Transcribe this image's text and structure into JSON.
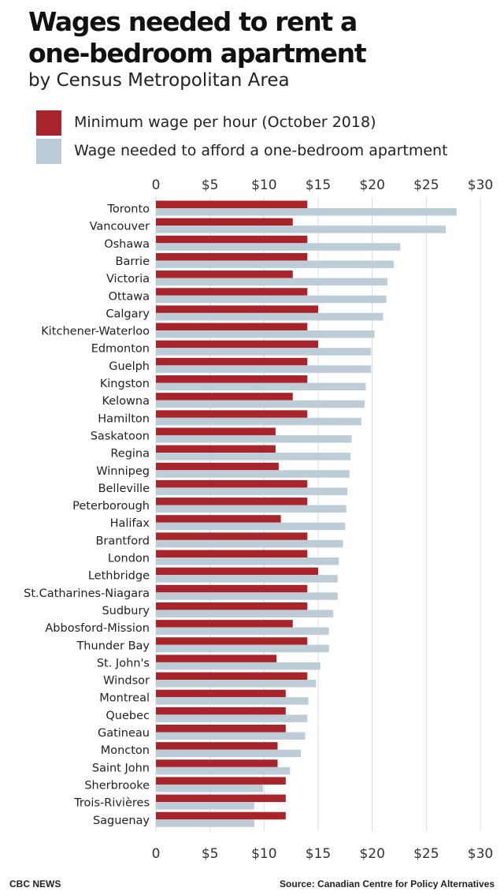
{
  "header": {
    "title_line1": "Wages needed to rent a",
    "title_line2": "one-bedroom apartment",
    "subtitle": "by Census Metropolitan Area"
  },
  "footer": {
    "credit": "CBC NEWS",
    "source": "Source: Canadian Centre for Policy Alternatives"
  },
  "chart_data": {
    "type": "bar",
    "orientation": "horizontal",
    "categories": [
      "Toronto",
      "Vancouver",
      "Oshawa",
      "Barrie",
      "Victoria",
      "Ottawa",
      "Calgary",
      "Kitchener-Waterloo",
      "Edmonton",
      "Guelph",
      "Kingston",
      "Kelowna",
      "Hamilton",
      "Saskatoon",
      "Regina",
      "Winnipeg",
      "Belleville",
      "Peterborough",
      "Halifax",
      "Brantford",
      "London",
      "Lethbridge",
      "St.Catharines-Niagara",
      "Sudbury",
      "Abbosford-Mission",
      "Thunder Bay",
      "St. John's",
      "Windsor",
      "Montreal",
      "Quebec",
      "Gatineau",
      "Moncton",
      "Saint John",
      "Sherbrooke",
      "Trois-Rivières",
      "Saguenay"
    ],
    "series": [
      {
        "name": "Minimum wage per hour (October 2018)",
        "color": "#a8232a",
        "values": [
          14,
          12.65,
          14,
          14,
          12.65,
          14,
          15,
          14,
          15,
          14,
          14,
          12.65,
          14,
          11.06,
          11.06,
          11.35,
          14,
          14,
          11.55,
          14,
          14,
          15,
          14,
          14,
          12.65,
          14,
          11.15,
          14,
          12,
          12,
          12,
          11.25,
          11.25,
          12,
          12,
          12
        ]
      },
      {
        "name": "Wage needed to afford a one-bedroom apartment",
        "color": "#bccdd7",
        "values": [
          27.8,
          26.8,
          22.6,
          22,
          21.4,
          21.3,
          21,
          20.2,
          19.9,
          19.9,
          19.4,
          19.3,
          19,
          18.1,
          18,
          17.9,
          17.7,
          17.6,
          17.5,
          17.3,
          16.9,
          16.8,
          16.8,
          16.4,
          16,
          16,
          15.2,
          14.8,
          14.1,
          14,
          13.8,
          13.4,
          12.4,
          9.9,
          9.1,
          9.1
        ]
      }
    ],
    "x_ticks": [
      "0",
      "$5",
      "$10",
      "$15",
      "$20",
      "$25",
      "$30"
    ],
    "x_tick_values": [
      0,
      5,
      10,
      15,
      20,
      25,
      30
    ],
    "xlim": [
      0,
      30
    ],
    "grid": true,
    "legend_position": "top-left"
  }
}
